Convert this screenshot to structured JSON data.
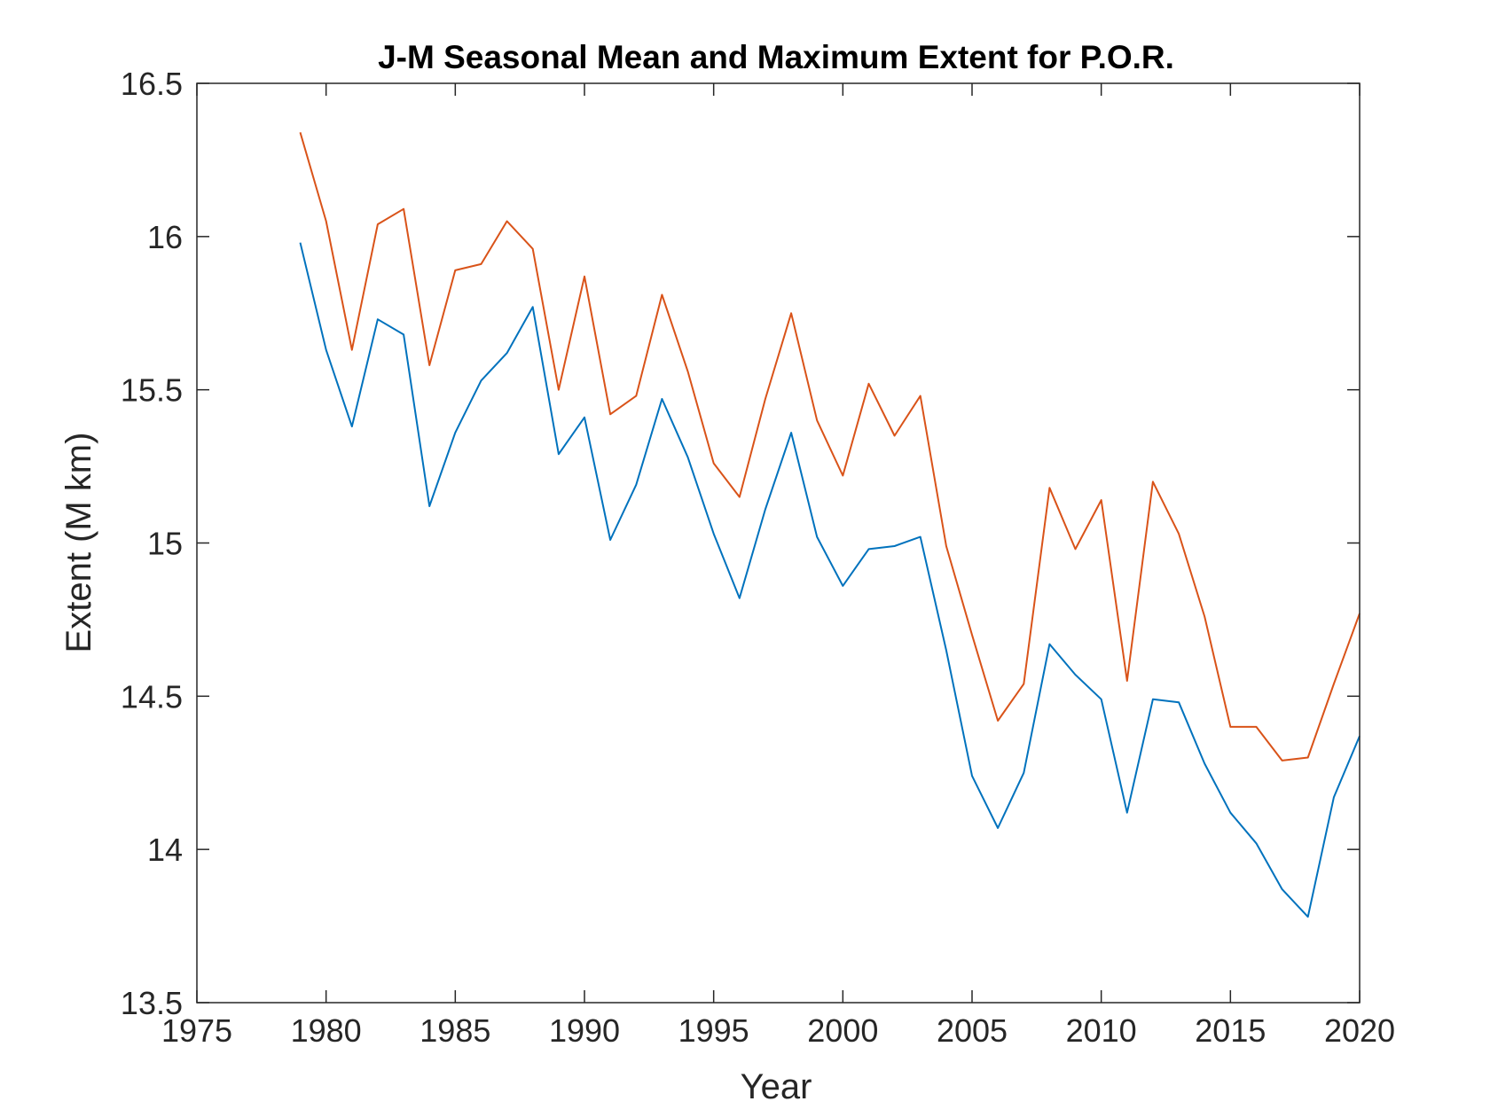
{
  "chart_data": {
    "type": "line",
    "title": "J-M Seasonal Mean and Maximum Extent for P.O.R.",
    "xlabel": "Year",
    "ylabel": "Extent (M km)",
    "xlim": [
      1975,
      2020
    ],
    "ylim": [
      13.5,
      16.5
    ],
    "xticks": [
      "1975",
      "1980",
      "1985",
      "1990",
      "1995",
      "2000",
      "2005",
      "2010",
      "2015",
      "2020"
    ],
    "yticks": [
      "13.5",
      "14",
      "14.5",
      "15",
      "15.5",
      "16",
      "16.5"
    ],
    "grid": false,
    "legend": "none",
    "x": [
      1979,
      1980,
      1981,
      1982,
      1983,
      1984,
      1985,
      1986,
      1987,
      1988,
      1989,
      1990,
      1991,
      1992,
      1993,
      1994,
      1995,
      1996,
      1997,
      1998,
      1999,
      2000,
      2001,
      2002,
      2003,
      2004,
      2005,
      2006,
      2007,
      2008,
      2009,
      2010,
      2011,
      2012,
      2013,
      2014,
      2015,
      2016,
      2017,
      2018,
      2019,
      2020
    ],
    "series": [
      {
        "color": "#D95319",
        "values": [
          16.34,
          16.05,
          15.63,
          16.04,
          16.09,
          15.58,
          15.89,
          15.91,
          16.05,
          15.96,
          15.5,
          15.87,
          15.42,
          15.48,
          15.81,
          15.56,
          15.26,
          15.15,
          15.47,
          15.75,
          15.4,
          15.22,
          15.52,
          15.35,
          15.48,
          14.99,
          14.7,
          14.42,
          14.54,
          15.18,
          14.98,
          15.14,
          14.55,
          15.2,
          15.03,
          14.76,
          14.4,
          14.4,
          14.29,
          14.3,
          14.54,
          14.77
        ]
      },
      {
        "color": "#0072BD",
        "values": [
          15.98,
          15.63,
          15.38,
          15.73,
          15.68,
          15.12,
          15.36,
          15.53,
          15.62,
          15.77,
          15.29,
          15.41,
          15.01,
          15.19,
          15.47,
          15.28,
          15.03,
          14.82,
          15.11,
          15.36,
          15.02,
          14.86,
          14.98,
          14.99,
          15.02,
          14.65,
          14.24,
          14.07,
          14.25,
          14.67,
          14.57,
          14.49,
          14.12,
          14.49,
          14.48,
          14.28,
          14.12,
          14.02,
          13.87,
          13.78,
          14.17,
          14.37
        ]
      }
    ]
  }
}
